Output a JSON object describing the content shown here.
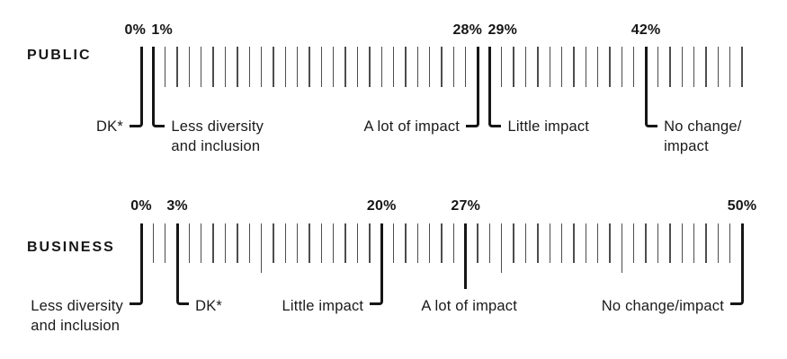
{
  "chart_data": {
    "type": "ruler-strip",
    "title": "",
    "unit": "%",
    "axis": {
      "min": 0,
      "max": 50,
      "tick_step": 1,
      "orientation": "horizontal",
      "grid": false
    },
    "colors": {
      "ink": "#161616",
      "thin_tick": "#4d4d4d",
      "background": "#ffffff"
    },
    "series": [
      {
        "name": "PUBLIC",
        "long_decade_ticks": false,
        "points": [
          {
            "category": "DK*",
            "value": 0,
            "pct_label": "0%",
            "pct_align": "end",
            "label_side": "left",
            "label_lines": [
              "DK*"
            ]
          },
          {
            "category": "Less diversity and inclusion",
            "value": 1,
            "pct_label": "1%",
            "pct_align": "start",
            "label_side": "right",
            "label_lines": [
              "Less diversity",
              "and inclusion"
            ]
          },
          {
            "category": "A lot of impact",
            "value": 28,
            "pct_label": "28%",
            "pct_align": "end",
            "label_side": "left",
            "label_lines": [
              "A lot of impact"
            ]
          },
          {
            "category": "Little impact",
            "value": 29,
            "pct_label": "29%",
            "pct_align": "start",
            "label_side": "right",
            "label_lines": [
              "Little impact"
            ]
          },
          {
            "category": "No change/impact",
            "value": 42,
            "pct_label": "42%",
            "pct_align": "center",
            "label_side": "right",
            "label_lines": [
              "No change/",
              "impact"
            ]
          }
        ]
      },
      {
        "name": "BUSINESS",
        "long_decade_ticks": true,
        "points": [
          {
            "category": "Less diversity and inclusion",
            "value": 0,
            "pct_label": "0%",
            "pct_align": "center",
            "label_side": "left",
            "label_lines": [
              "Less diversity",
              "and inclusion"
            ]
          },
          {
            "category": "DK*",
            "value": 3,
            "pct_label": "3%",
            "pct_align": "center",
            "label_side": "right",
            "label_lines": [
              "DK*"
            ]
          },
          {
            "category": "Little impact",
            "value": 20,
            "pct_label": "20%",
            "pct_align": "center",
            "label_side": "left",
            "label_lines": [
              "Little impact"
            ]
          },
          {
            "category": "A lot of impact",
            "value": 27,
            "pct_label": "27%",
            "pct_align": "center",
            "label_side": "below",
            "label_lines": [
              "A lot of impact"
            ]
          },
          {
            "category": "No change/impact",
            "value": 50,
            "pct_label": "50%",
            "pct_align": "center",
            "label_side": "left",
            "label_lines": [
              "No change/impact"
            ]
          }
        ]
      }
    ]
  }
}
